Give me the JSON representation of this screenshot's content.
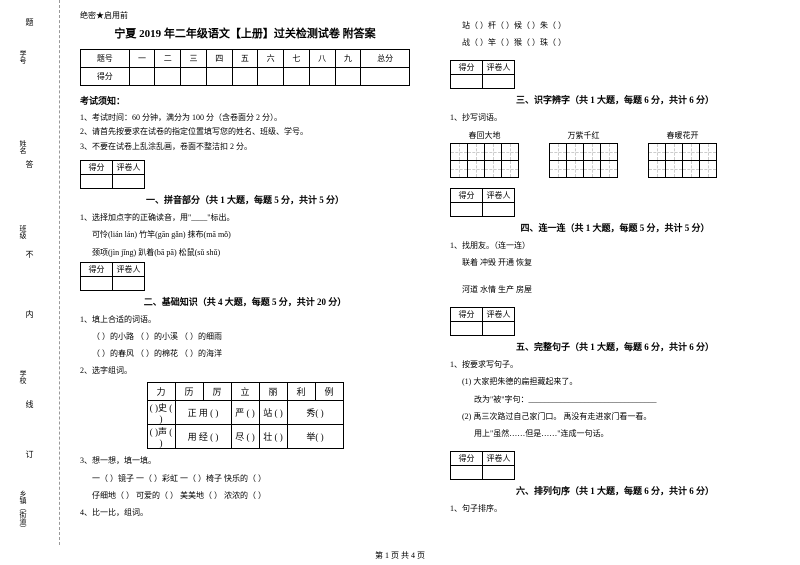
{
  "binding": {
    "xuehao": "学号",
    "xingming": "姓名",
    "banji": "班级",
    "nei": "内",
    "xuexiao": "学校",
    "xian": "线",
    "ding": "订",
    "xiangzhen": "乡镇（街道）",
    "buyao": "不",
    "ti": "题"
  },
  "secret": "绝密★启用前",
  "title": "宁夏 2019 年二年级语文【上册】过关检测试卷 附答案",
  "score_headers": [
    "题号",
    "一",
    "二",
    "三",
    "四",
    "五",
    "六",
    "七",
    "八",
    "九",
    "总分"
  ],
  "score_row2": "得分",
  "exam_notice_header": "考试须知：",
  "instructions": [
    "1、考试时间：60 分钟，满分为 100 分（含卷面分 2 分）。",
    "2、请首先按要求在试卷的指定位置填写您的姓名、班级、学号。",
    "3、不要在试卷上乱涂乱画，卷面不整洁扣 2 分。"
  ],
  "mini_headers": [
    "得分",
    "评卷人"
  ],
  "sections": {
    "s1": {
      "title": "一、拼音部分（共 1 大题，每题 5 分，共计 5 分）",
      "q1": "1、选择加点字的正确读音，用\"____\"标出。",
      "lines": [
        "可怜(lián  lán)      竹竿(gān  gǎn)         抹布(mā  mǒ)",
        "颈项(jìn  jǐng)       趴着(bā  pā)           松鼠(sǔ  shǔ)"
      ]
    },
    "s2": {
      "title": "二、基础知识（共 4 大题，每题 5 分，共计 20 分）",
      "q1": "1、填上合适的词语。",
      "q1_lines": [
        "（          ）的小路    （          ）的小溪    （          ）的细雨",
        "（          ）的春风    （          ）的棉花    （          ）的海洋"
      ],
      "q2": "2、选字组词。",
      "char_row": [
        "力",
        "历",
        "厉",
        "立",
        "丽",
        "利",
        "例"
      ],
      "char_line1": [
        "(    )史 (    )",
        "正   用 (    )",
        "严 (    )",
        "站 (    )",
        "秀(    )"
      ],
      "char_line2": [
        "(    )声  (    )",
        "用   经 (    )",
        "尽 (    )",
        "壮 (    )",
        "举(    )"
      ],
      "q3": "3、想一想，填一填。",
      "q3_lines": [
        "一（    ）镜子      一（    ）彩虹        一（    ）椅子        快乐的（    ）",
        "仔细地（    ）      可爱的（    ）        美美地（    ）        浓浓的（    ）"
      ],
      "q4": "4、比一比，组词。"
    },
    "right_top": {
      "lines": [
        "站（        ）杆（        ）候（        ）朱（        ）",
        "战（        ）竿（        ）猴（        ）珠（        ）"
      ]
    },
    "s3": {
      "title": "三、识字辨字（共 1 大题，每题 6 分，共计 6 分）",
      "q1": "1、抄写词语。",
      "words": [
        "春回大地",
        "万紫千红",
        "春暖花开"
      ]
    },
    "s4": {
      "title": "四、连一连（共 1 大题，每题 5 分，共计 5 分）",
      "q1": "1、找朋友。（连一连）",
      "line1": "联着      冲毁      开通      恢复",
      "line2": "河道      水情      生产      房屋"
    },
    "s5": {
      "title": "五、完整句子（共 1 大题，每题 6 分，共计 6 分）",
      "q1": "1、按要求写句子。",
      "sub1": "(1) 大家把朱德的扁担藏起来了。",
      "sub1_req": "改为\"被\"字句：________________________________",
      "sub2": "(2) 禹三次路过自己家门口。    禹没有走进家门看一看。",
      "sub2_req": "用上\"虽然……但是……\"连成一句话。"
    },
    "s6": {
      "title": "六、排列句序（共 1 大题，每题 6 分，共计 6 分）",
      "q1": "1、句子排序。"
    }
  },
  "footer": "第 1 页 共 4 页"
}
